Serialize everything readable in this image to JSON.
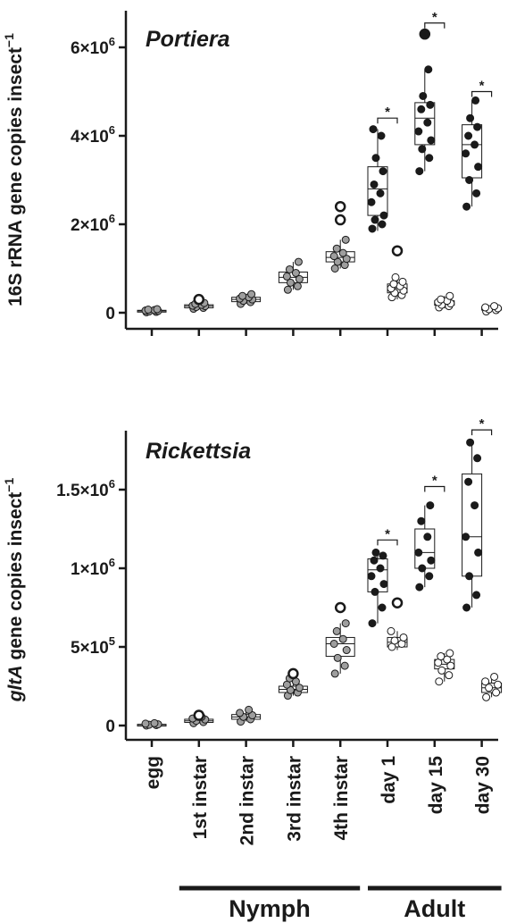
{
  "chart_data": [
    {
      "type": "box",
      "title": "Portiera",
      "ylabel": {
        "prefix": "16S rRNA gene copies insect",
        "exponent": "−1"
      },
      "ylim": [
        0,
        6600000
      ],
      "yticks": [
        {
          "value": 0,
          "mantissa": "0",
          "exp": ""
        },
        {
          "value": 2000000,
          "mantissa": "2×10",
          "exp": "6"
        },
        {
          "value": 4000000,
          "mantissa": "4×10",
          "exp": "6"
        },
        {
          "value": 6000000,
          "mantissa": "6×10",
          "exp": "6"
        }
      ],
      "categories": [
        "egg",
        "1st instar",
        "2nd instar",
        "3rd instar",
        "4th instar",
        "day 1",
        "day 15",
        "day 30"
      ],
      "series": [
        {
          "color": "#9e9e9e",
          "boxes": [
            {
              "category": "egg",
              "q1": 20000,
              "median": 40000,
              "q3": 55000,
              "whisker_low": 0,
              "whisker_high": 80000,
              "points": [
                10000,
                20000,
                30000,
                40000,
                50000,
                60000,
                70000,
                80000
              ],
              "outliers": []
            },
            {
              "category": "1st instar",
              "q1": 110000,
              "median": 150000,
              "q3": 180000,
              "whisker_low": 80000,
              "whisker_high": 220000,
              "points": [
                90000,
                110000,
                130000,
                150000,
                160000,
                180000,
                200000,
                220000
              ],
              "outliers": [
                300000
              ]
            },
            {
              "category": "2nd instar",
              "q1": 250000,
              "median": 300000,
              "q3": 350000,
              "whisker_low": 200000,
              "whisker_high": 420000,
              "points": [
                200000,
                240000,
                270000,
                300000,
                320000,
                350000,
                380000,
                420000
              ],
              "outliers": []
            },
            {
              "category": "3rd instar",
              "q1": 680000,
              "median": 800000,
              "q3": 920000,
              "whisker_low": 520000,
              "whisker_high": 1150000,
              "points": [
                520000,
                600000,
                680000,
                760000,
                820000,
                900000,
                980000,
                1150000
              ],
              "outliers": []
            },
            {
              "category": "4th instar",
              "q1": 1150000,
              "median": 1250000,
              "q3": 1380000,
              "whisker_low": 1000000,
              "whisker_high": 1650000,
              "points": [
                1000000,
                1080000,
                1150000,
                1220000,
                1280000,
                1350000,
                1450000,
                1650000
              ],
              "outliers": [
                2100000,
                2400000
              ]
            }
          ]
        },
        {
          "name": "Adult",
          "color": "#1a1a1a",
          "boxes": [
            {
              "category": "day 1",
              "q1": 2200000,
              "median": 2800000,
              "q3": 3300000,
              "whisker_low": 1850000,
              "whisker_high": 4150000,
              "points": [
                1900000,
                2000000,
                2100000,
                2200000,
                2500000,
                2700000,
                2900000,
                3200000,
                3500000,
                4000000,
                4150000
              ],
              "outliers": []
            },
            {
              "category": "day 15",
              "q1": 3800000,
              "median": 4400000,
              "q3": 4750000,
              "whisker_low": 3200000,
              "whisker_high": 5500000,
              "points": [
                3200000,
                3500000,
                3700000,
                3900000,
                4100000,
                4300000,
                4600000,
                4700000,
                4900000,
                5500000
              ],
              "outliers": [
                6300000
              ]
            },
            {
              "category": "day 30",
              "q1": 3050000,
              "median": 3800000,
              "q3": 4250000,
              "whisker_low": 2400000,
              "whisker_high": 4800000,
              "points": [
                2400000,
                2700000,
                3000000,
                3300000,
                3600000,
                3800000,
                4000000,
                4200000,
                4400000,
                4800000
              ],
              "outliers": []
            }
          ]
        },
        {
          "name": "Adult",
          "color": "#ffffff",
          "boxes": [
            {
              "category": "day 1",
              "q1": 450000,
              "median": 550000,
              "q3": 650000,
              "whisker_low": 300000,
              "whisker_high": 800000,
              "points": [
                350000,
                400000,
                450000,
                500000,
                550000,
                600000,
                650000,
                700000,
                800000
              ],
              "outliers": [
                1400000
              ]
            },
            {
              "category": "day 15",
              "q1": 170000,
              "median": 220000,
              "q3": 270000,
              "whisker_low": 100000,
              "whisker_high": 380000,
              "points": [
                120000,
                150000,
                180000,
                210000,
                240000,
                270000,
                300000,
                380000
              ],
              "outliers": []
            },
            {
              "category": "day 30",
              "q1": 60000,
              "median": 90000,
              "q3": 120000,
              "whisker_low": 30000,
              "whisker_high": 150000,
              "points": [
                30000,
                60000,
                80000,
                100000,
                120000,
                150000
              ],
              "outliers": []
            }
          ]
        }
      ],
      "significance": [
        {
          "category": "day 1",
          "label": "*",
          "y": 4400000
        },
        {
          "category": "day 15",
          "label": "*",
          "y": 6550000
        },
        {
          "category": "day 30",
          "label": "*",
          "y": 5000000
        }
      ]
    },
    {
      "type": "box",
      "title": "Rickettsia",
      "ylabel": {
        "italic": "gltA",
        "prefix": " gene copies insect",
        "exponent": "−1"
      },
      "ylim": [
        0,
        1900000
      ],
      "yticks": [
        {
          "value": 0,
          "mantissa": "0",
          "exp": ""
        },
        {
          "value": 500000,
          "mantissa": "5×10",
          "exp": "5"
        },
        {
          "value": 1000000,
          "mantissa": "1×10",
          "exp": "6"
        },
        {
          "value": 1500000,
          "mantissa": "1.5×10",
          "exp": "6"
        }
      ],
      "categories": [
        "egg",
        "1st instar",
        "2nd instar",
        "3rd instar",
        "4th instar",
        "day 1",
        "day 15",
        "day 30"
      ],
      "series": [
        {
          "color": "#9e9e9e",
          "boxes": [
            {
              "category": "egg",
              "q1": 2000,
              "median": 5000,
              "q3": 8000,
              "whisker_low": 0,
              "whisker_high": 15000,
              "points": [
                0,
                3000,
                5000,
                8000,
                12000,
                15000
              ],
              "outliers": []
            },
            {
              "category": "1st instar",
              "q1": 20000,
              "median": 30000,
              "q3": 40000,
              "whisker_low": 15000,
              "whisker_high": 55000,
              "points": [
                15000,
                22000,
                30000,
                38000,
                45000,
                55000
              ],
              "outliers": [
                65000
              ]
            },
            {
              "category": "2nd instar",
              "q1": 40000,
              "median": 55000,
              "q3": 70000,
              "whisker_low": 25000,
              "whisker_high": 100000,
              "points": [
                25000,
                40000,
                55000,
                65000,
                80000,
                100000
              ],
              "outliers": []
            },
            {
              "category": "3rd instar",
              "q1": 210000,
              "median": 230000,
              "q3": 250000,
              "whisker_low": 190000,
              "whisker_high": 300000,
              "points": [
                190000,
                210000,
                225000,
                240000,
                260000,
                280000,
                300000
              ],
              "outliers": [
                330000
              ]
            },
            {
              "category": "4th instar",
              "q1": 440000,
              "median": 520000,
              "q3": 560000,
              "whisker_low": 330000,
              "whisker_high": 650000,
              "points": [
                330000,
                380000,
                430000,
                480000,
                520000,
                550000,
                600000,
                650000
              ],
              "outliers": [
                750000
              ]
            }
          ]
        },
        {
          "name": "Adult",
          "color": "#1a1a1a",
          "boxes": [
            {
              "category": "day 1",
              "q1": 850000,
              "median": 990000,
              "q3": 1060000,
              "whisker_low": 650000,
              "whisker_high": 1100000,
              "points": [
                650000,
                750000,
                850000,
                900000,
                950000,
                1000000,
                1050000,
                1080000,
                1100000
              ],
              "outliers": []
            },
            {
              "category": "day 15",
              "q1": 1000000,
              "median": 1100000,
              "q3": 1250000,
              "whisker_low": 880000,
              "whisker_high": 1400000,
              "points": [
                880000,
                950000,
                1000000,
                1050000,
                1100000,
                1200000,
                1300000,
                1400000
              ],
              "outliers": []
            },
            {
              "category": "day 30",
              "q1": 950000,
              "median": 1200000,
              "q3": 1600000,
              "whisker_low": 750000,
              "whisker_high": 1800000,
              "points": [
                750000,
                830000,
                950000,
                1100000,
                1200000,
                1400000,
                1550000,
                1700000,
                1800000
              ],
              "outliers": []
            }
          ]
        },
        {
          "name": "Adult",
          "color": "#ffffff",
          "boxes": [
            {
              "category": "day 1",
              "q1": 500000,
              "median": 530000,
              "q3": 560000,
              "whisker_low": 480000,
              "whisker_high": 600000,
              "points": [
                500000,
                520000,
                540000,
                560000,
                600000
              ],
              "outliers": [
                780000
              ]
            },
            {
              "category": "day 15",
              "q1": 360000,
              "median": 390000,
              "q3": 420000,
              "whisker_low": 280000,
              "whisker_high": 460000,
              "points": [
                280000,
                320000,
                350000,
                380000,
                400000,
                420000,
                440000,
                460000
              ],
              "outliers": []
            },
            {
              "category": "day 30",
              "q1": 210000,
              "median": 240000,
              "q3": 270000,
              "whisker_low": 180000,
              "whisker_high": 310000,
              "points": [
                180000,
                210000,
                240000,
                260000,
                280000,
                310000
              ],
              "outliers": []
            }
          ]
        }
      ],
      "significance": [
        {
          "category": "day 1",
          "label": "*",
          "y": 1180000
        },
        {
          "category": "day 15",
          "label": "*",
          "y": 1520000
        },
        {
          "category": "day 30",
          "label": "*",
          "y": 1880000
        }
      ]
    }
  ],
  "x_axis": {
    "groups": [
      {
        "label": "Nymph",
        "from": "1st instar",
        "to": "4th instar"
      },
      {
        "label": "Adult",
        "from": "day 1",
        "to": "day 30"
      }
    ]
  }
}
